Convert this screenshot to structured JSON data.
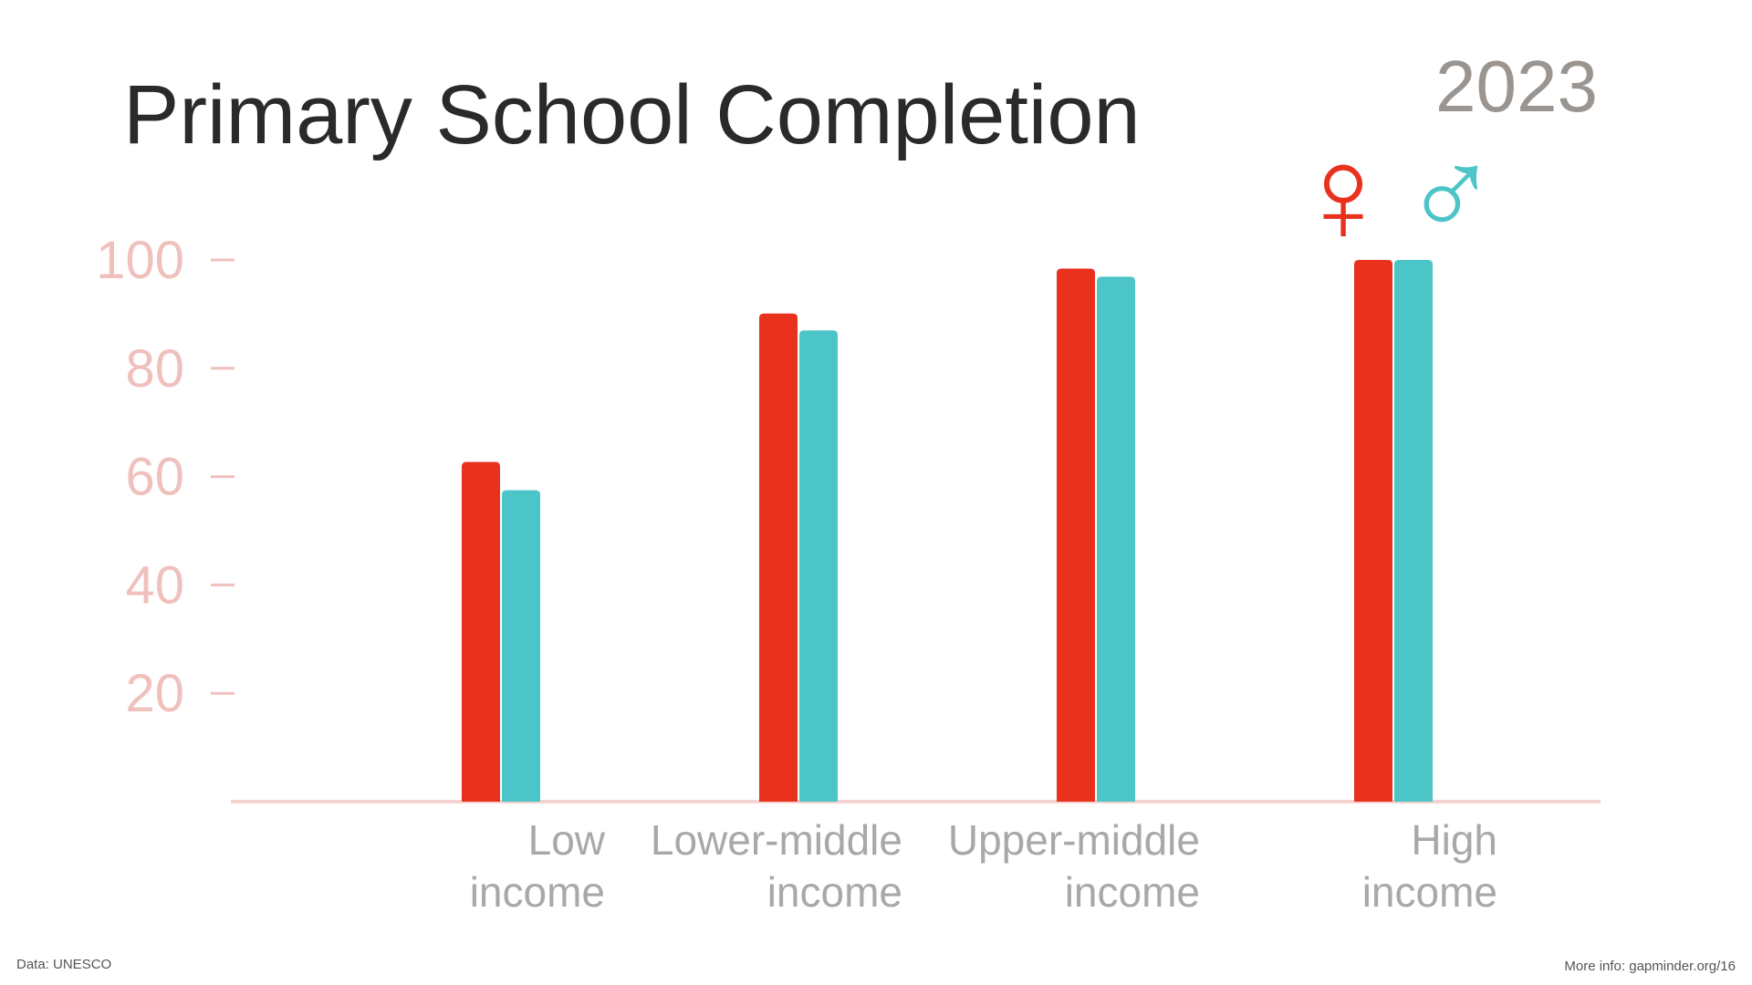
{
  "chart_data": {
    "type": "bar",
    "title": "Primary School Completion",
    "subtitle": "2023",
    "categories": [
      [
        "Low",
        "income"
      ],
      [
        "Lower-middle",
        "income"
      ],
      [
        "Upper-middle",
        "income"
      ],
      [
        "High",
        "income"
      ]
    ],
    "series": [
      {
        "name": "♀",
        "color": "#e8321e",
        "values": [
          62.7,
          90.1,
          98.4,
          100
        ]
      },
      {
        "name": "♂",
        "color": "#4cc5c9",
        "values": [
          57.5,
          87,
          96.9,
          100
        ]
      }
    ],
    "ylim": [
      0,
      100
    ],
    "yticks": [
      20,
      40,
      60,
      80,
      100
    ],
    "source": "Data: UNESCO",
    "footer": "More info: gapminder.org/16"
  }
}
